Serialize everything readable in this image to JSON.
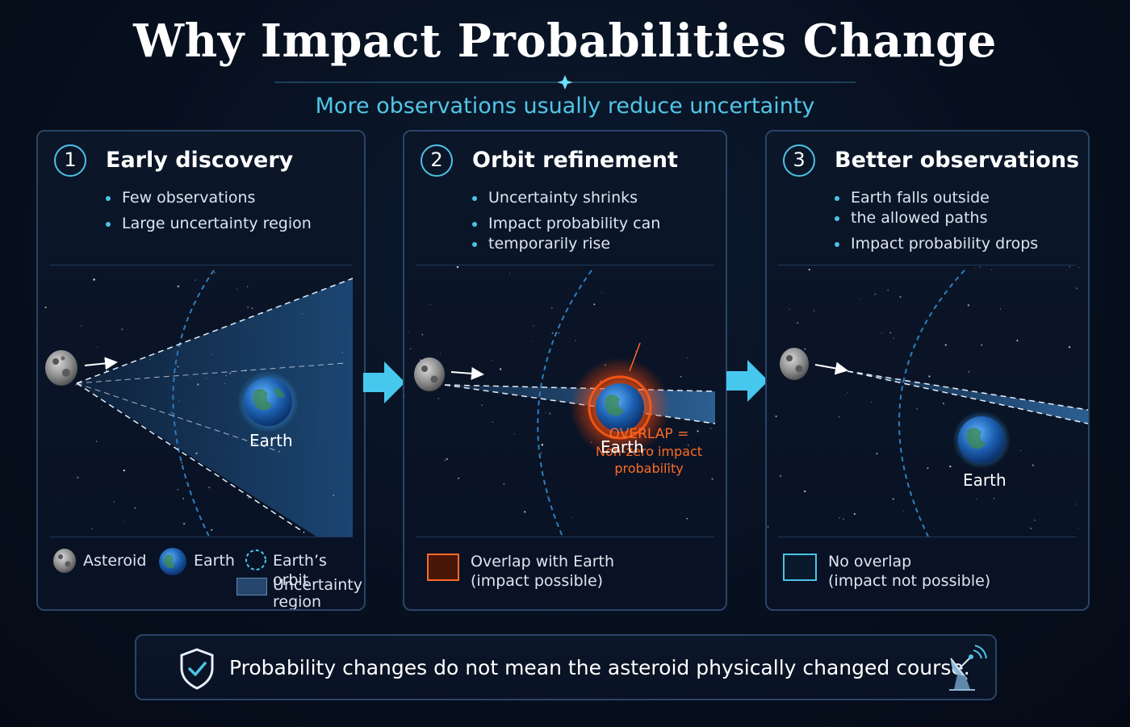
{
  "title": "Why Impact Probabilities Change",
  "subtitle": "More observations usually reduce uncertainty",
  "panels": [
    {
      "number": "1",
      "title": "Early discovery",
      "bullets": [
        "Few observations",
        "Large uncertainty region"
      ],
      "earth_label": "Earth",
      "legend": {
        "asteroid": "Asteroid",
        "earth": "Earth",
        "orbit": "Earth’s orbit",
        "uncertainty_1": "Uncertainty",
        "uncertainty_2": "region"
      }
    },
    {
      "number": "2",
      "title": "Orbit refinement",
      "bullets": [
        "Uncertainty shrinks",
        "Impact probability can",
        "temporarily rise"
      ],
      "earth_label": "Earth",
      "overlap_label": [
        "OVERLAP =",
        "Non-zero impact",
        "probability"
      ],
      "legend": {
        "line1": "Overlap with Earth",
        "line2": "(impact possible)"
      }
    },
    {
      "number": "3",
      "title": "Better observations",
      "bullets": [
        "Earth falls outside",
        "the allowed paths",
        "Impact probability drops"
      ],
      "earth_label": "Earth",
      "legend": {
        "line1": "No overlap",
        "line2": "(impact not possible)"
      }
    }
  ],
  "footer": {
    "text": "Probability changes do not mean the asteroid physically changed course."
  },
  "colors": {
    "accent": "#4cc3e6",
    "overlap": "#ff6a24",
    "panel_border": "#2a4466",
    "background": "#07101f"
  },
  "icons": [
    "asteroid-icon",
    "earth-icon",
    "orbit-icon",
    "shield-check-icon",
    "satellite-dish-icon",
    "arrow-right-icon"
  ]
}
